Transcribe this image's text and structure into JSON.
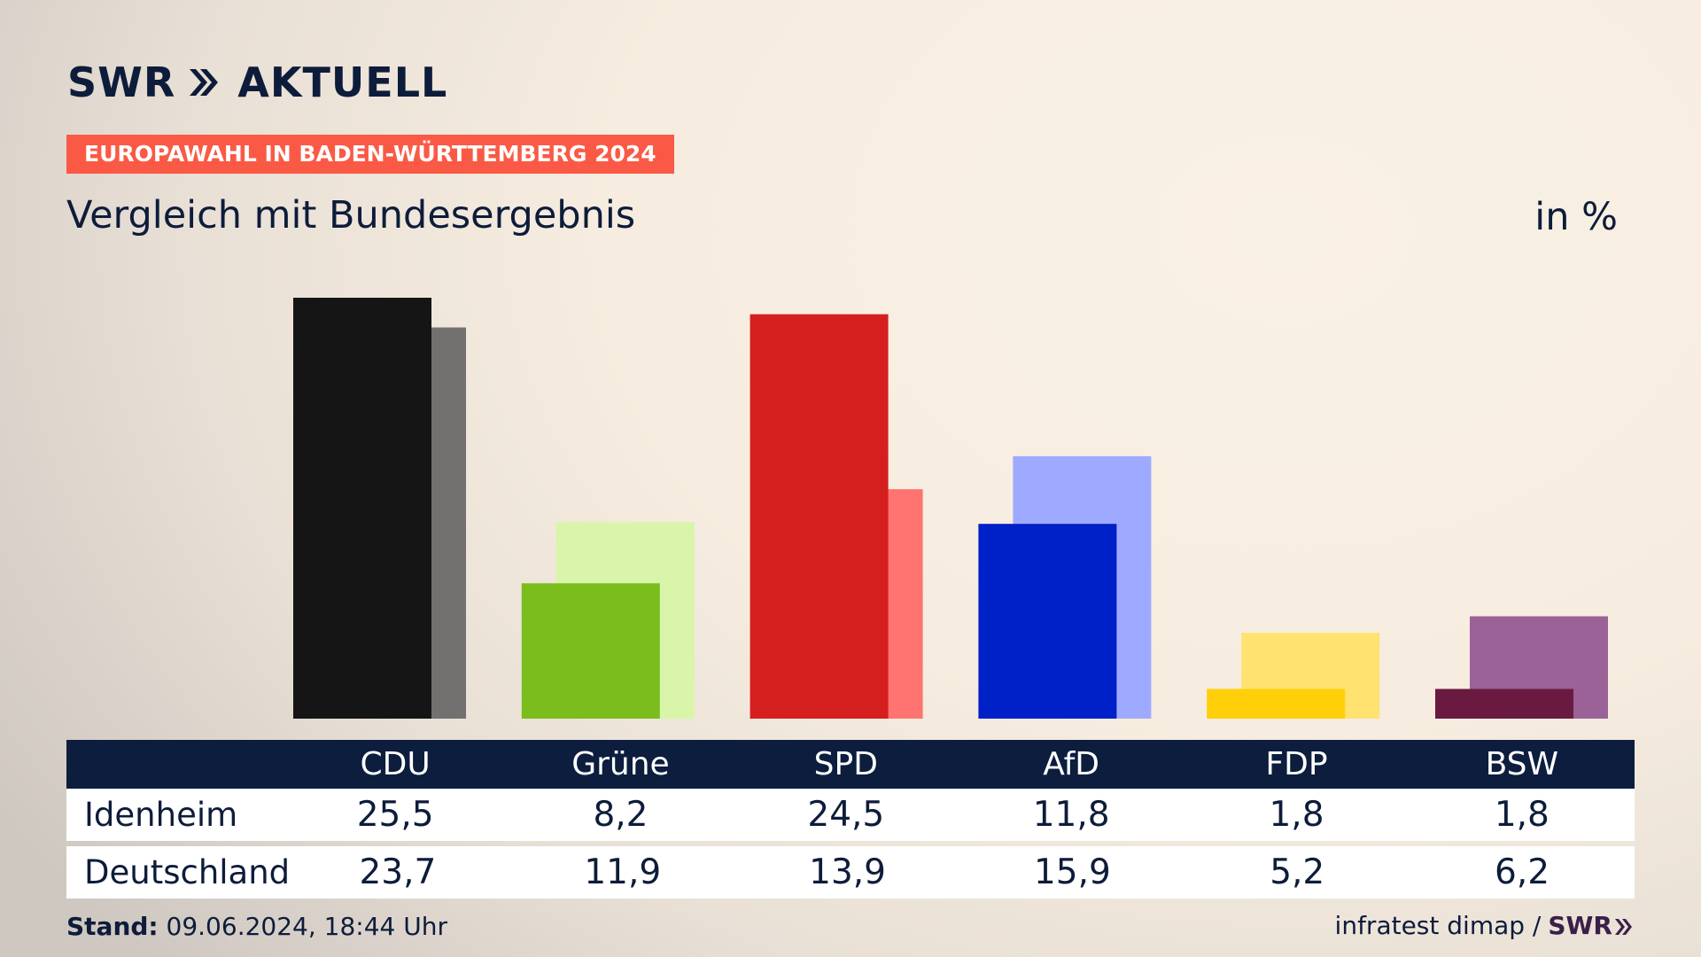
{
  "header": {
    "logo_text": "SWR",
    "logo_suffix": "AKTUELL",
    "tag": "EUROPAWAHL IN BADEN-WÜRTTEMBERG 2024",
    "subtitle": "Vergleich mit Bundesergebnis",
    "unit": "in %"
  },
  "table": {
    "row_labels": [
      "Idenheim",
      "Deutschland"
    ]
  },
  "footer": {
    "stand_label": "Stand:",
    "stand_value": "09.06.2024, 18:44 Uhr",
    "source": "infratest dimap /",
    "source_logo": "SWR"
  },
  "chart_data": {
    "type": "bar",
    "categories": [
      "CDU",
      "Grüne",
      "SPD",
      "AfD",
      "FDP",
      "BSW"
    ],
    "series": [
      {
        "name": "Idenheim",
        "values": [
          25.5,
          8.2,
          24.5,
          11.8,
          1.8,
          1.8
        ],
        "labels": [
          "25,5",
          "8,2",
          "24,5",
          "11,8",
          "1,8",
          "1,8"
        ]
      },
      {
        "name": "Deutschland",
        "values": [
          23.7,
          11.9,
          13.9,
          15.9,
          5.2,
          6.2
        ],
        "labels": [
          "23,7",
          "11,9",
          "13,9",
          "15,9",
          "5,2",
          "6,2"
        ]
      }
    ],
    "colors_primary": [
      "#151515",
      "#7abd1c",
      "#d51f1f",
      "#0020c8",
      "#ffcf0a",
      "#6a1a40"
    ],
    "colors_secondary": [
      "#737070",
      "#d8f5aa",
      "#ff7470",
      "#9eaaff",
      "#ffe270",
      "#9a6296"
    ],
    "ylim": [
      0,
      25.5
    ],
    "grid": false,
    "legend": "table-below"
  }
}
